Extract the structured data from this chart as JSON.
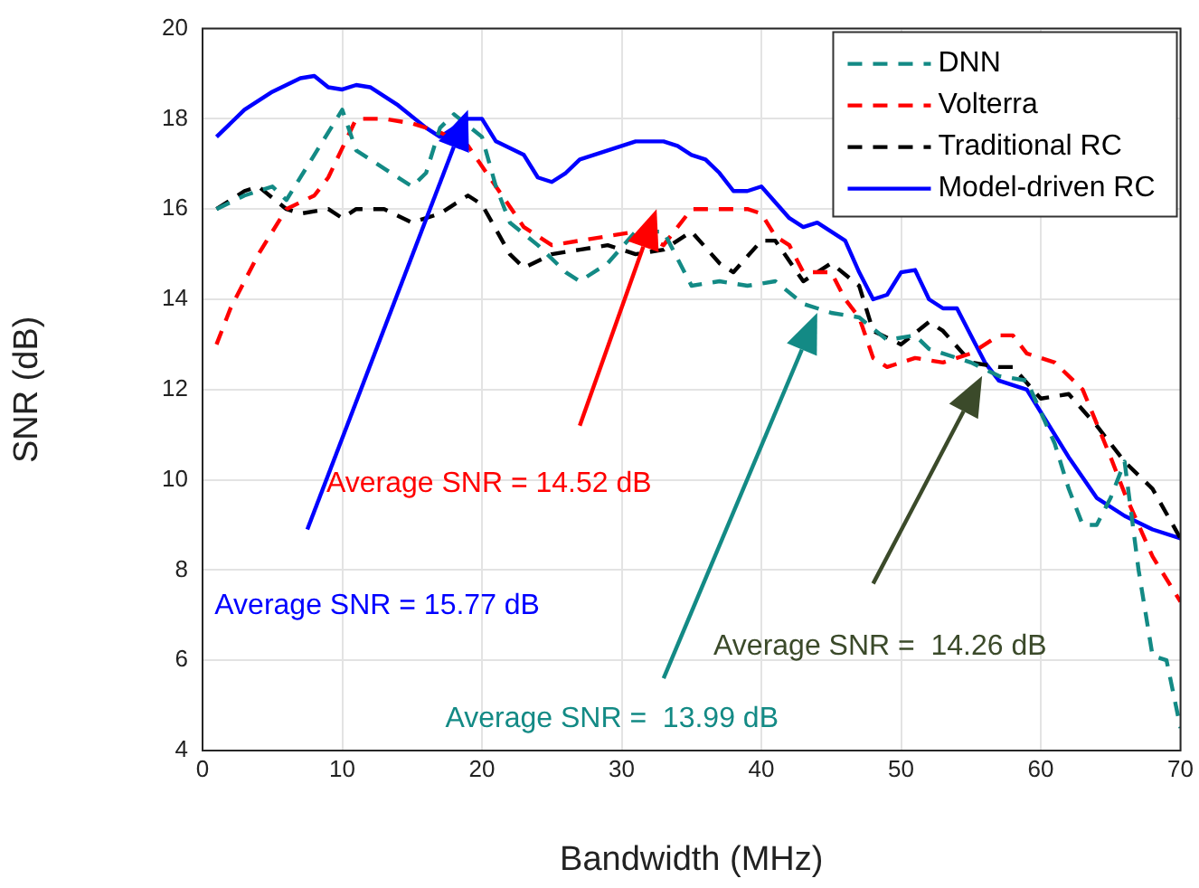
{
  "chart_data": {
    "type": "line",
    "xlabel": "Bandwidth (MHz)",
    "ylabel": "SNR (dB)",
    "xlim": [
      0,
      70
    ],
    "xticks": [
      0,
      10,
      20,
      30,
      40,
      50,
      60,
      70
    ],
    "ylim": [
      4,
      20
    ],
    "yticks": [
      4,
      6,
      8,
      10,
      12,
      14,
      16,
      18,
      20
    ],
    "grid": true,
    "legend": "top right",
    "marker": "none",
    "series": [
      {
        "name": "DNN",
        "color": "#138a85",
        "line_style": "dashed",
        "x": [
          1,
          3,
          5,
          6,
          8,
          10,
          11,
          13,
          15,
          16,
          17,
          18,
          20,
          21,
          22,
          24,
          26,
          27,
          29,
          31,
          33,
          35,
          37,
          39,
          41,
          43,
          45,
          47,
          49,
          51,
          52,
          53,
          55,
          57,
          59,
          61,
          62,
          63,
          64,
          65,
          66,
          67,
          68,
          69,
          70
        ],
        "values": [
          16,
          16.3,
          16.5,
          16.2,
          17.2,
          18.2,
          17.3,
          16.9,
          16.5,
          16.8,
          17.8,
          18.1,
          17.6,
          16.5,
          15.7,
          15.2,
          14.6,
          14.4,
          14.8,
          15.5,
          15.5,
          14.3,
          14.4,
          14.3,
          14.4,
          13.9,
          13.7,
          13.6,
          13.1,
          13.2,
          12.9,
          12.8,
          12.6,
          12.3,
          12.2,
          10.8,
          9.8,
          9,
          9,
          9.6,
          10.4,
          8,
          6.1,
          6,
          4.5
        ]
      },
      {
        "name": "Volterra",
        "color": "#ff0000",
        "line_style": "dashed",
        "x": [
          1,
          2,
          4,
          6,
          8,
          9,
          11,
          13,
          15,
          17,
          19,
          21,
          23,
          25,
          27,
          29,
          31,
          33,
          35,
          37,
          39,
          40,
          41,
          42,
          43,
          44,
          45,
          46,
          47,
          48,
          49,
          51,
          53,
          55,
          57,
          58,
          59,
          61,
          63,
          65,
          66,
          68,
          70
        ],
        "values": [
          13,
          13.8,
          15,
          16,
          16.3,
          16.7,
          18,
          18,
          17.9,
          17.7,
          17.4,
          16.5,
          15.6,
          15.2,
          15.3,
          15.4,
          15.5,
          15.2,
          16,
          16,
          16,
          15.9,
          15.4,
          15.2,
          14.6,
          14.6,
          14.6,
          14,
          13.6,
          12.7,
          12.5,
          12.7,
          12.6,
          12.8,
          13.2,
          13.2,
          12.8,
          12.6,
          12,
          10.5,
          9.7,
          8.3,
          7.3
        ]
      },
      {
        "name": "Traditional RC",
        "color": "#000000",
        "line_style": "dashed",
        "x": [
          1,
          3,
          4,
          6,
          7,
          9,
          10,
          11,
          13,
          15,
          17,
          19,
          20,
          22,
          23,
          25,
          27,
          29,
          31,
          33,
          35,
          37,
          38,
          40,
          41,
          43,
          45,
          47,
          48,
          50,
          52,
          53,
          55,
          57,
          58,
          60,
          62,
          64,
          66,
          68,
          70
        ],
        "values": [
          16,
          16.4,
          16.5,
          16,
          15.9,
          16,
          15.8,
          16,
          16,
          15.7,
          15.9,
          16.3,
          16.1,
          15,
          14.7,
          15,
          15.1,
          15.2,
          15,
          15.1,
          15.5,
          14.8,
          14.6,
          15.3,
          15.3,
          14.4,
          14.8,
          14.3,
          13.3,
          13,
          13.5,
          13.3,
          12.6,
          12.5,
          12.5,
          11.8,
          11.9,
          11.2,
          10.4,
          9.8,
          8.7
        ]
      },
      {
        "name": "Model-driven RC",
        "color": "#0000ff",
        "line_style": "solid",
        "x": [
          1,
          3,
          5,
          7,
          8,
          9,
          10,
          11,
          12,
          14,
          16,
          17,
          19,
          20,
          21,
          23,
          24,
          25,
          26,
          27,
          29,
          31,
          33,
          34,
          35,
          36,
          37,
          38,
          39,
          40,
          42,
          43,
          44,
          45,
          46,
          47,
          48,
          49,
          50,
          51,
          52,
          53,
          54,
          55,
          56,
          57,
          58,
          59,
          60,
          62,
          64,
          66,
          68,
          70
        ],
        "values": [
          17.6,
          18.2,
          18.6,
          18.9,
          18.95,
          18.7,
          18.65,
          18.75,
          18.7,
          18.3,
          17.8,
          17.6,
          18,
          18,
          17.5,
          17.2,
          16.7,
          16.6,
          16.8,
          17.1,
          17.3,
          17.5,
          17.5,
          17.4,
          17.2,
          17.1,
          16.8,
          16.4,
          16.4,
          16.5,
          15.8,
          15.6,
          15.7,
          15.5,
          15.3,
          14.6,
          14,
          14.1,
          14.6,
          14.65,
          14,
          13.8,
          13.8,
          13.2,
          12.6,
          12.2,
          12.1,
          12,
          11.5,
          10.5,
          9.6,
          9.2,
          8.9,
          8.7
        ]
      }
    ],
    "annotations": [
      "Average SNR = 15.77 dB",
      "Average SNR = 14.52 dB",
      "Average SNR =  13.99 dB",
      "Average SNR =  14.26 dB"
    ]
  }
}
